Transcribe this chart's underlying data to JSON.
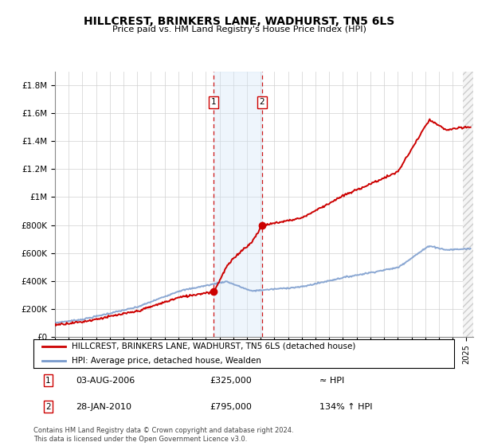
{
  "title": "HILLCREST, BRINKERS LANE, WADHURST, TN5 6LS",
  "subtitle": "Price paid vs. HM Land Registry's House Price Index (HPI)",
  "xlim_start": 1995.0,
  "xlim_end": 2025.5,
  "ylim_max": 1900000,
  "yticks": [
    0,
    200000,
    400000,
    600000,
    800000,
    1000000,
    1200000,
    1400000,
    1600000,
    1800000
  ],
  "ytick_labels": [
    "£0",
    "£200K",
    "£400K",
    "£600K",
    "£800K",
    "£1M",
    "£1.2M",
    "£1.4M",
    "£1.6M",
    "£1.8M"
  ],
  "hpi_color": "#7799cc",
  "price_color": "#cc0000",
  "sale1_date": 2006.583,
  "sale1_price": 325000,
  "sale2_date": 2010.083,
  "sale2_price": 795000,
  "legend_label1": "HILLCREST, BRINKERS LANE, WADHURST, TN5 6LS (detached house)",
  "legend_label2": "HPI: Average price, detached house, Wealden",
  "shade_color": "#d0e4f7",
  "footnote": "Contains HM Land Registry data © Crown copyright and database right 2024.\nThis data is licensed under the Open Government Licence v3.0."
}
